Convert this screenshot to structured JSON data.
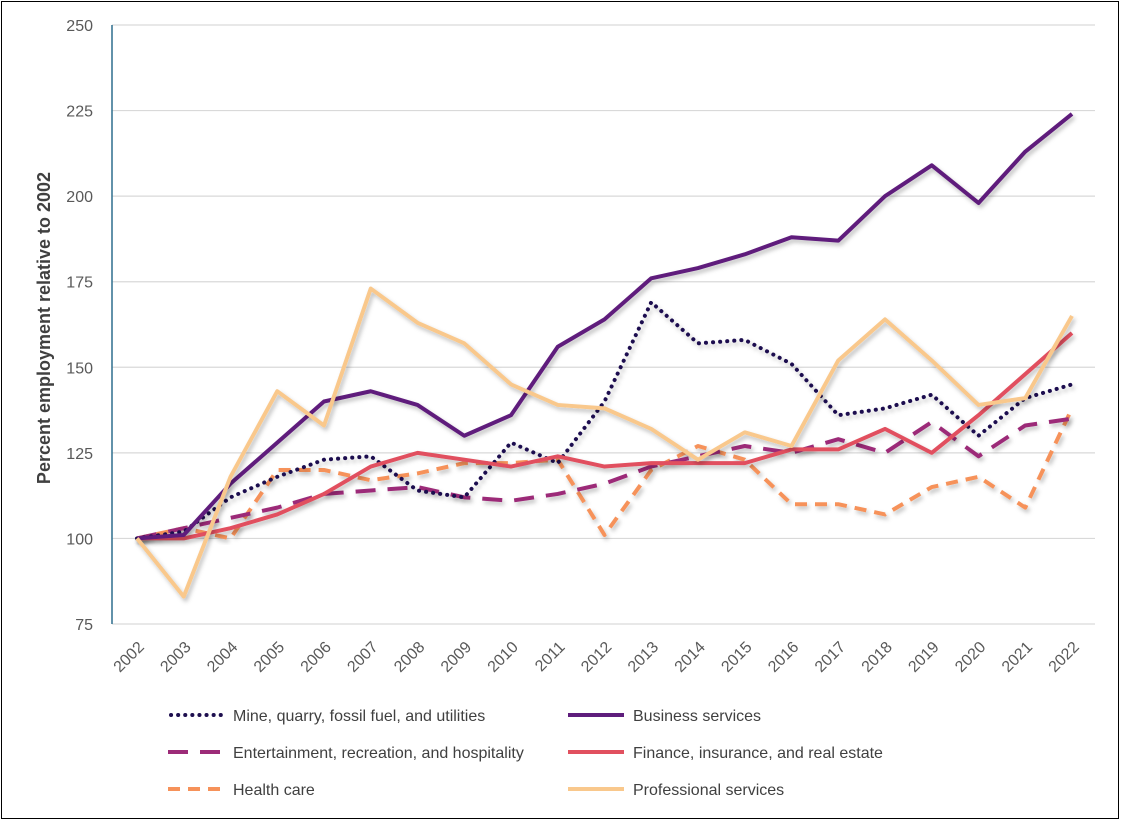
{
  "chart_data": {
    "type": "line",
    "title": "",
    "xlabel": "",
    "ylabel": "Percent employment relative to 2002",
    "ylim": [
      75,
      250
    ],
    "yticks": [
      75,
      100,
      125,
      150,
      175,
      200,
      225,
      250
    ],
    "grid": true,
    "legend_position": "bottom",
    "x": [
      "2002",
      "2003",
      "2004",
      "2005",
      "2006",
      "2007",
      "2008",
      "2009",
      "2010",
      "2011",
      "2012",
      "2013",
      "2014",
      "2015",
      "2016",
      "2017",
      "2018",
      "2019",
      "2020",
      "2021",
      "2022"
    ],
    "series": [
      {
        "name": "Mine, quarry, fossil fuel, and utilities",
        "color": "#1e0f4f",
        "style": "dotted",
        "values": [
          100,
          102,
          112,
          118,
          123,
          124,
          114,
          112,
          128,
          122,
          140,
          169,
          157,
          158,
          151,
          136,
          138,
          142,
          130,
          141,
          145
        ]
      },
      {
        "name": "Business services",
        "color": "#5e1d7c",
        "style": "solid",
        "values": [
          100,
          101,
          116,
          128,
          140,
          143,
          139,
          130,
          136,
          156,
          164,
          176,
          179,
          183,
          188,
          187,
          200,
          209,
          198,
          213,
          224
        ]
      },
      {
        "name": "Entertainment, recreation, and hospitality",
        "color": "#9c2b78",
        "style": "dashed",
        "values": [
          100,
          103,
          106,
          109,
          113,
          114,
          115,
          112,
          111,
          113,
          116,
          121,
          124,
          127,
          125,
          129,
          125,
          134,
          124,
          133,
          135
        ]
      },
      {
        "name": "Finance, insurance, and real estate",
        "color": "#e1505f",
        "style": "solid",
        "values": [
          100,
          100,
          103,
          107,
          113,
          121,
          125,
          123,
          121,
          124,
          121,
          122,
          122,
          122,
          126,
          126,
          132,
          125,
          136,
          148,
          160
        ]
      },
      {
        "name": "Health care",
        "color": "#f6925a",
        "style": "dashed-short",
        "values": [
          100,
          103,
          100,
          120,
          120,
          117,
          119,
          122,
          122,
          123,
          101,
          120,
          127,
          123,
          110,
          110,
          107,
          115,
          118,
          109,
          138
        ]
      },
      {
        "name": "Professional services",
        "color": "#f9c88c",
        "style": "solid",
        "values": [
          100,
          83,
          118,
          143,
          133,
          173,
          163,
          157,
          145,
          139,
          138,
          132,
          123,
          131,
          127,
          152,
          164,
          152,
          139,
          141,
          165
        ]
      }
    ]
  }
}
